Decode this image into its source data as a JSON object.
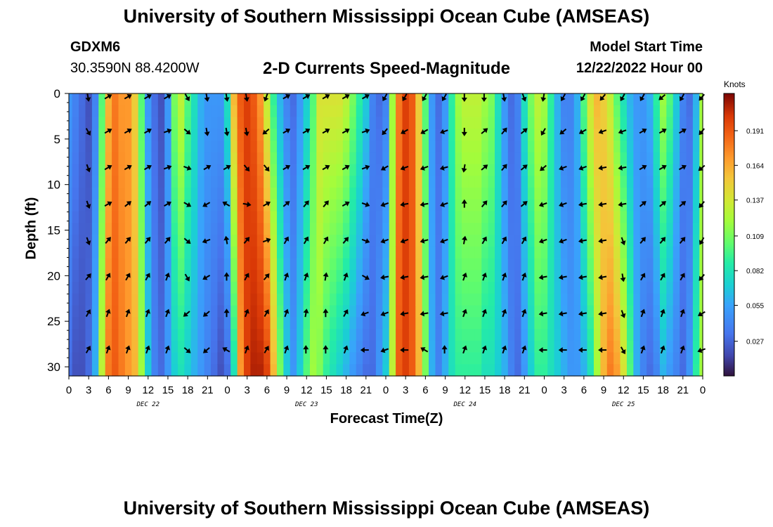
{
  "header": {
    "title": "University of Southern Mississippi Ocean Cube (AMSEAS)",
    "station_id": "GDXM6",
    "location": "30.3590N  88.4200W",
    "plot_title": "2-D Currents Speed-Magnitude",
    "model_start_label": "Model Start Time",
    "model_start_value": "12/22/2022 Hour 00"
  },
  "footer": {
    "title": "University of Southern Mississippi Ocean Cube (AMSEAS)"
  },
  "chart_data": {
    "type": "heatmap",
    "title": "2-D Currents Speed-Magnitude",
    "xlabel": "Forecast Time(Z)",
    "ylabel": "Depth (ft)",
    "x_hours": [
      0,
      96
    ],
    "x_ticks": [
      "0",
      "3",
      "6",
      "9",
      "12",
      "15",
      "18",
      "21",
      "0",
      "3",
      "6",
      "9",
      "12",
      "15",
      "18",
      "21",
      "0",
      "3",
      "6",
      "9",
      "12",
      "15",
      "18",
      "21",
      "0",
      "3",
      "6",
      "9",
      "12",
      "15",
      "18",
      "21",
      "0"
    ],
    "day_labels": [
      {
        "label": "DEC 22",
        "hour": 12
      },
      {
        "label": "DEC 23",
        "hour": 36
      },
      {
        "label": "DEC 24",
        "hour": 60
      },
      {
        "label": "DEC 25",
        "hour": 84
      }
    ],
    "ylim": [
      0,
      31
    ],
    "y_ticks": [
      "0",
      "5",
      "10",
      "15",
      "20",
      "25",
      "30"
    ],
    "y_tick_values": [
      0,
      5,
      10,
      15,
      20,
      25,
      30
    ],
    "colorbar": {
      "unit": "Knots",
      "range": [
        0,
        0.22
      ],
      "ticks": [
        "0.191",
        "0.164",
        "0.137",
        "0.109",
        "0.082",
        "0.055",
        "0.027"
      ],
      "tick_values": [
        0.191,
        0.164,
        0.137,
        0.109,
        0.082,
        0.055,
        0.027
      ]
    },
    "speed_profile_hours": [
      0,
      1,
      2,
      3,
      4,
      5,
      6,
      7,
      8,
      9,
      10,
      11,
      12,
      13,
      14,
      15,
      16,
      17,
      18,
      19,
      20,
      21,
      22,
      23,
      24,
      25,
      26,
      27,
      28,
      29,
      30,
      31,
      32,
      33,
      34,
      35,
      36,
      37,
      38,
      39,
      40,
      41,
      42,
      43,
      44,
      45,
      46,
      47,
      48,
      49,
      50,
      51,
      52,
      53,
      54,
      55,
      56,
      57,
      58,
      59,
      60,
      61,
      62,
      63,
      64,
      65,
      66,
      67,
      68,
      69,
      70,
      71,
      72,
      73,
      74,
      75,
      76,
      77,
      78,
      79,
      80,
      81,
      82,
      83,
      84,
      85,
      86,
      87,
      88,
      89,
      90,
      91,
      92,
      93,
      94,
      95,
      96
    ],
    "speed_surface": [
      0.05,
      0.04,
      0.03,
      0.02,
      0.04,
      0.1,
      0.16,
      0.18,
      0.17,
      0.17,
      0.15,
      0.1,
      0.05,
      0.03,
      0.02,
      0.05,
      0.11,
      0.13,
      0.1,
      0.08,
      0.06,
      0.05,
      0.05,
      0.05,
      0.08,
      0.16,
      0.19,
      0.2,
      0.19,
      0.17,
      0.13,
      0.09,
      0.06,
      0.04,
      0.03,
      0.05,
      0.07,
      0.1,
      0.14,
      0.14,
      0.14,
      0.14,
      0.13,
      0.11,
      0.09,
      0.07,
      0.04,
      0.03,
      0.04,
      0.12,
      0.18,
      0.2,
      0.19,
      0.15,
      0.1,
      0.05,
      0.03,
      0.05,
      0.09,
      0.12,
      0.13,
      0.13,
      0.13,
      0.12,
      0.11,
      0.08,
      0.05,
      0.03,
      0.04,
      0.08,
      0.11,
      0.13,
      0.12,
      0.09,
      0.06,
      0.04,
      0.04,
      0.06,
      0.1,
      0.14,
      0.16,
      0.15,
      0.13,
      0.1,
      0.08,
      0.06,
      0.05,
      0.05,
      0.06,
      0.09,
      0.12,
      0.1,
      0.07,
      0.04,
      0.03,
      0.06,
      0.12
    ],
    "speed_bottom": [
      0.03,
      0.02,
      0.02,
      0.03,
      0.06,
      0.13,
      0.18,
      0.19,
      0.18,
      0.17,
      0.16,
      0.12,
      0.07,
      0.04,
      0.03,
      0.05,
      0.07,
      0.08,
      0.07,
      0.06,
      0.05,
      0.04,
      0.03,
      0.02,
      0.03,
      0.08,
      0.17,
      0.2,
      0.21,
      0.21,
      0.2,
      0.16,
      0.11,
      0.07,
      0.05,
      0.07,
      0.1,
      0.12,
      0.11,
      0.09,
      0.08,
      0.07,
      0.06,
      0.05,
      0.04,
      0.03,
      0.03,
      0.05,
      0.07,
      0.13,
      0.19,
      0.2,
      0.19,
      0.16,
      0.11,
      0.06,
      0.04,
      0.06,
      0.08,
      0.09,
      0.09,
      0.09,
      0.09,
      0.08,
      0.08,
      0.07,
      0.06,
      0.04,
      0.03,
      0.05,
      0.07,
      0.09,
      0.09,
      0.08,
      0.07,
      0.06,
      0.05,
      0.05,
      0.06,
      0.08,
      0.12,
      0.16,
      0.18,
      0.17,
      0.14,
      0.1,
      0.06,
      0.04,
      0.03,
      0.04,
      0.06,
      0.05,
      0.04,
      0.03,
      0.05,
      0.09,
      0.12
    ],
    "arrow_hours": [
      3,
      6,
      9,
      12,
      15,
      18,
      21,
      24,
      27,
      30,
      33,
      36,
      39,
      42,
      45,
      48,
      51,
      54,
      57,
      60,
      63,
      66,
      69,
      72,
      75,
      78,
      81,
      84,
      87,
      90,
      93,
      96
    ],
    "arrow_depths": [
      0,
      4,
      8,
      12,
      16,
      20,
      24,
      28
    ],
    "arrow_dir_deg": [
      [
        170,
        60,
        60,
        60,
        60,
        150,
        170,
        170,
        170,
        200,
        60,
        60,
        60,
        60,
        60,
        210,
        210,
        210,
        210,
        180,
        180,
        170,
        160,
        190,
        210,
        210,
        220,
        210,
        210,
        230,
        210,
        220
      ],
      [
        150,
        60,
        60,
        60,
        70,
        130,
        170,
        170,
        170,
        230,
        60,
        60,
        60,
        60,
        70,
        220,
        240,
        240,
        250,
        180,
        50,
        40,
        50,
        210,
        230,
        240,
        250,
        250,
        60,
        60,
        60,
        220
      ],
      [
        160,
        60,
        60,
        60,
        70,
        110,
        60,
        60,
        140,
        140,
        60,
        60,
        60,
        60,
        70,
        240,
        250,
        250,
        255,
        190,
        50,
        40,
        50,
        230,
        250,
        250,
        260,
        260,
        60,
        60,
        60,
        230
      ],
      [
        160,
        60,
        50,
        50,
        60,
        120,
        240,
        300,
        100,
        60,
        50,
        40,
        40,
        60,
        110,
        250,
        260,
        260,
        250,
        0,
        40,
        40,
        50,
        250,
        250,
        260,
        260,
        260,
        50,
        50,
        50,
        220
      ],
      [
        160,
        40,
        40,
        40,
        40,
        130,
        250,
        350,
        40,
        70,
        30,
        30,
        30,
        40,
        110,
        250,
        250,
        255,
        250,
        10,
        30,
        30,
        30,
        250,
        250,
        260,
        260,
        160,
        40,
        40,
        40,
        210
      ],
      [
        40,
        30,
        30,
        30,
        20,
        150,
        240,
        0,
        30,
        40,
        20,
        20,
        10,
        20,
        120,
        260,
        260,
        260,
        250,
        20,
        20,
        20,
        20,
        260,
        260,
        260,
        260,
        170,
        30,
        30,
        30,
        220
      ],
      [
        30,
        20,
        20,
        20,
        20,
        230,
        230,
        0,
        20,
        30,
        20,
        10,
        0,
        30,
        250,
        250,
        260,
        260,
        260,
        20,
        20,
        20,
        20,
        260,
        260,
        260,
        260,
        160,
        20,
        20,
        20,
        240
      ],
      [
        30,
        20,
        20,
        20,
        20,
        130,
        230,
        300,
        20,
        30,
        20,
        0,
        0,
        20,
        270,
        250,
        270,
        300,
        0,
        20,
        20,
        20,
        20,
        270,
        270,
        270,
        270,
        150,
        20,
        20,
        20,
        250
      ]
    ]
  }
}
